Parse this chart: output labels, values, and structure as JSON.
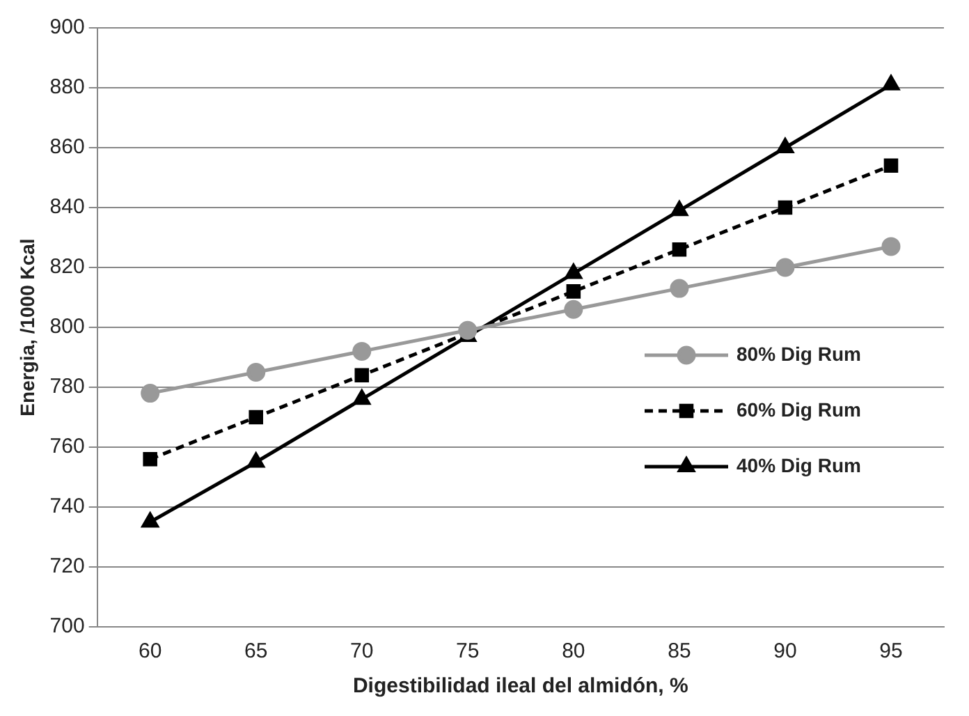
{
  "chart_data": {
    "type": "line",
    "xlabel": "Digestibilidad ileal del almidón, %",
    "ylabel": "Energia, /1000 Kcal",
    "categories": [
      "60",
      "65",
      "70",
      "75",
      "80",
      "85",
      "90",
      "95"
    ],
    "ylim": [
      700,
      900
    ],
    "yticks": [
      700,
      720,
      740,
      760,
      780,
      800,
      820,
      840,
      860,
      880,
      900
    ],
    "grid": "y",
    "legend": "right",
    "series": [
      {
        "name": "80% Dig Rum",
        "color": "#999999",
        "marker": "circle",
        "line_style": "solid",
        "values": [
          778,
          785,
          792,
          799,
          806,
          813,
          820,
          827
        ]
      },
      {
        "name": "60% Dig Rum",
        "color": "#000000",
        "marker": "square",
        "line_style": "dashed",
        "values": [
          756,
          770,
          784,
          798,
          812,
          826,
          840,
          854
        ]
      },
      {
        "name": "40% Dig Rum",
        "color": "#000000",
        "marker": "triangle",
        "line_style": "solid",
        "values": [
          735,
          755,
          776,
          797,
          818,
          839,
          860,
          881
        ]
      }
    ]
  }
}
